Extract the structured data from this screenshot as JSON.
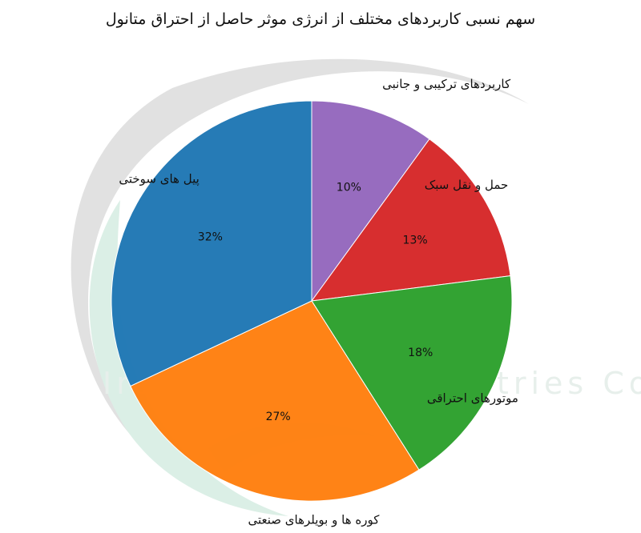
{
  "chart_data": {
    "type": "pie",
    "title": "سهم نسبی کاربردهای مختلف از انرژی موثر حاصل از احتراق متانول",
    "slices": [
      {
        "label": "کاربردهای ترکیبی و جانبی",
        "value": 10,
        "pct_label": "10%",
        "color": "#9467bd"
      },
      {
        "label": "حمل و نقل سبک",
        "value": 13,
        "pct_label": "13%",
        "color": "#d62728"
      },
      {
        "label": "موتورهای احتراقی",
        "value": 18,
        "pct_label": "18%",
        "color": "#2ca02c"
      },
      {
        "label": "کوره ها و بویلرهای صنعتی",
        "value": 27,
        "pct_label": "27%",
        "color": "#ff7f0e"
      },
      {
        "label": "پیل های سوختی",
        "value": 32,
        "pct_label": "32%",
        "color": "#1f77b4"
      }
    ],
    "start": "top",
    "direction": "clockwise",
    "legend": "none"
  },
  "watermark": {
    "text": "Iran Methanol Industries Co"
  }
}
